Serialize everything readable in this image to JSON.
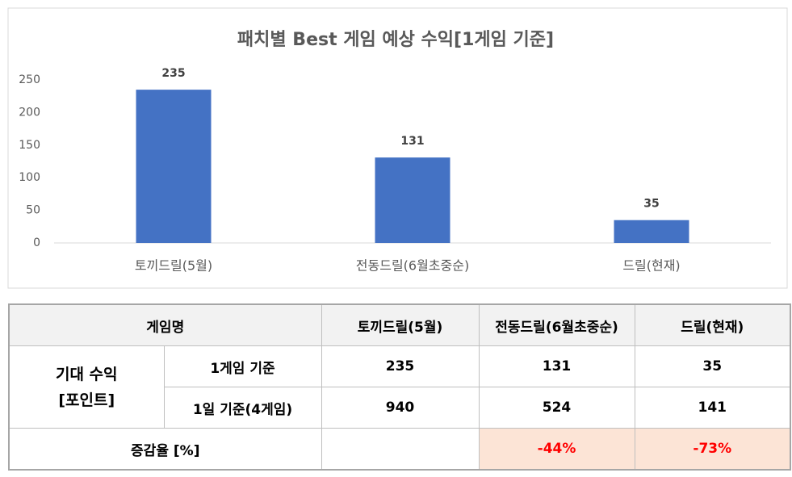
{
  "chart_data": {
    "type": "bar",
    "title": "패치별 Best 게임 예상 수익[1게임 기준]",
    "categories": [
      "토끼드릴(5월)",
      "전동드릴(6월초중순)",
      "드릴(현재)"
    ],
    "values": [
      235,
      131,
      35
    ],
    "color": "#4472c4",
    "ylim": [
      0,
      250
    ],
    "yticks": [
      0,
      50,
      100,
      150,
      200,
      250
    ],
    "grid": false
  },
  "table": {
    "header": [
      "게임명",
      "토끼드릴(5월)",
      "전동드릴(6월초중순)",
      "드릴(현재)"
    ],
    "group_label": [
      "기대 수익",
      "[포인트]"
    ],
    "rows": [
      {
        "label": "1게임 기준",
        "values": [
          235,
          131,
          35
        ]
      },
      {
        "label": "1일 기준(4게임)",
        "values": [
          940,
          524,
          141
        ]
      }
    ],
    "rate": {
      "label": "증감율 [%]",
      "values": [
        "-44%",
        "-73%"
      ]
    }
  }
}
